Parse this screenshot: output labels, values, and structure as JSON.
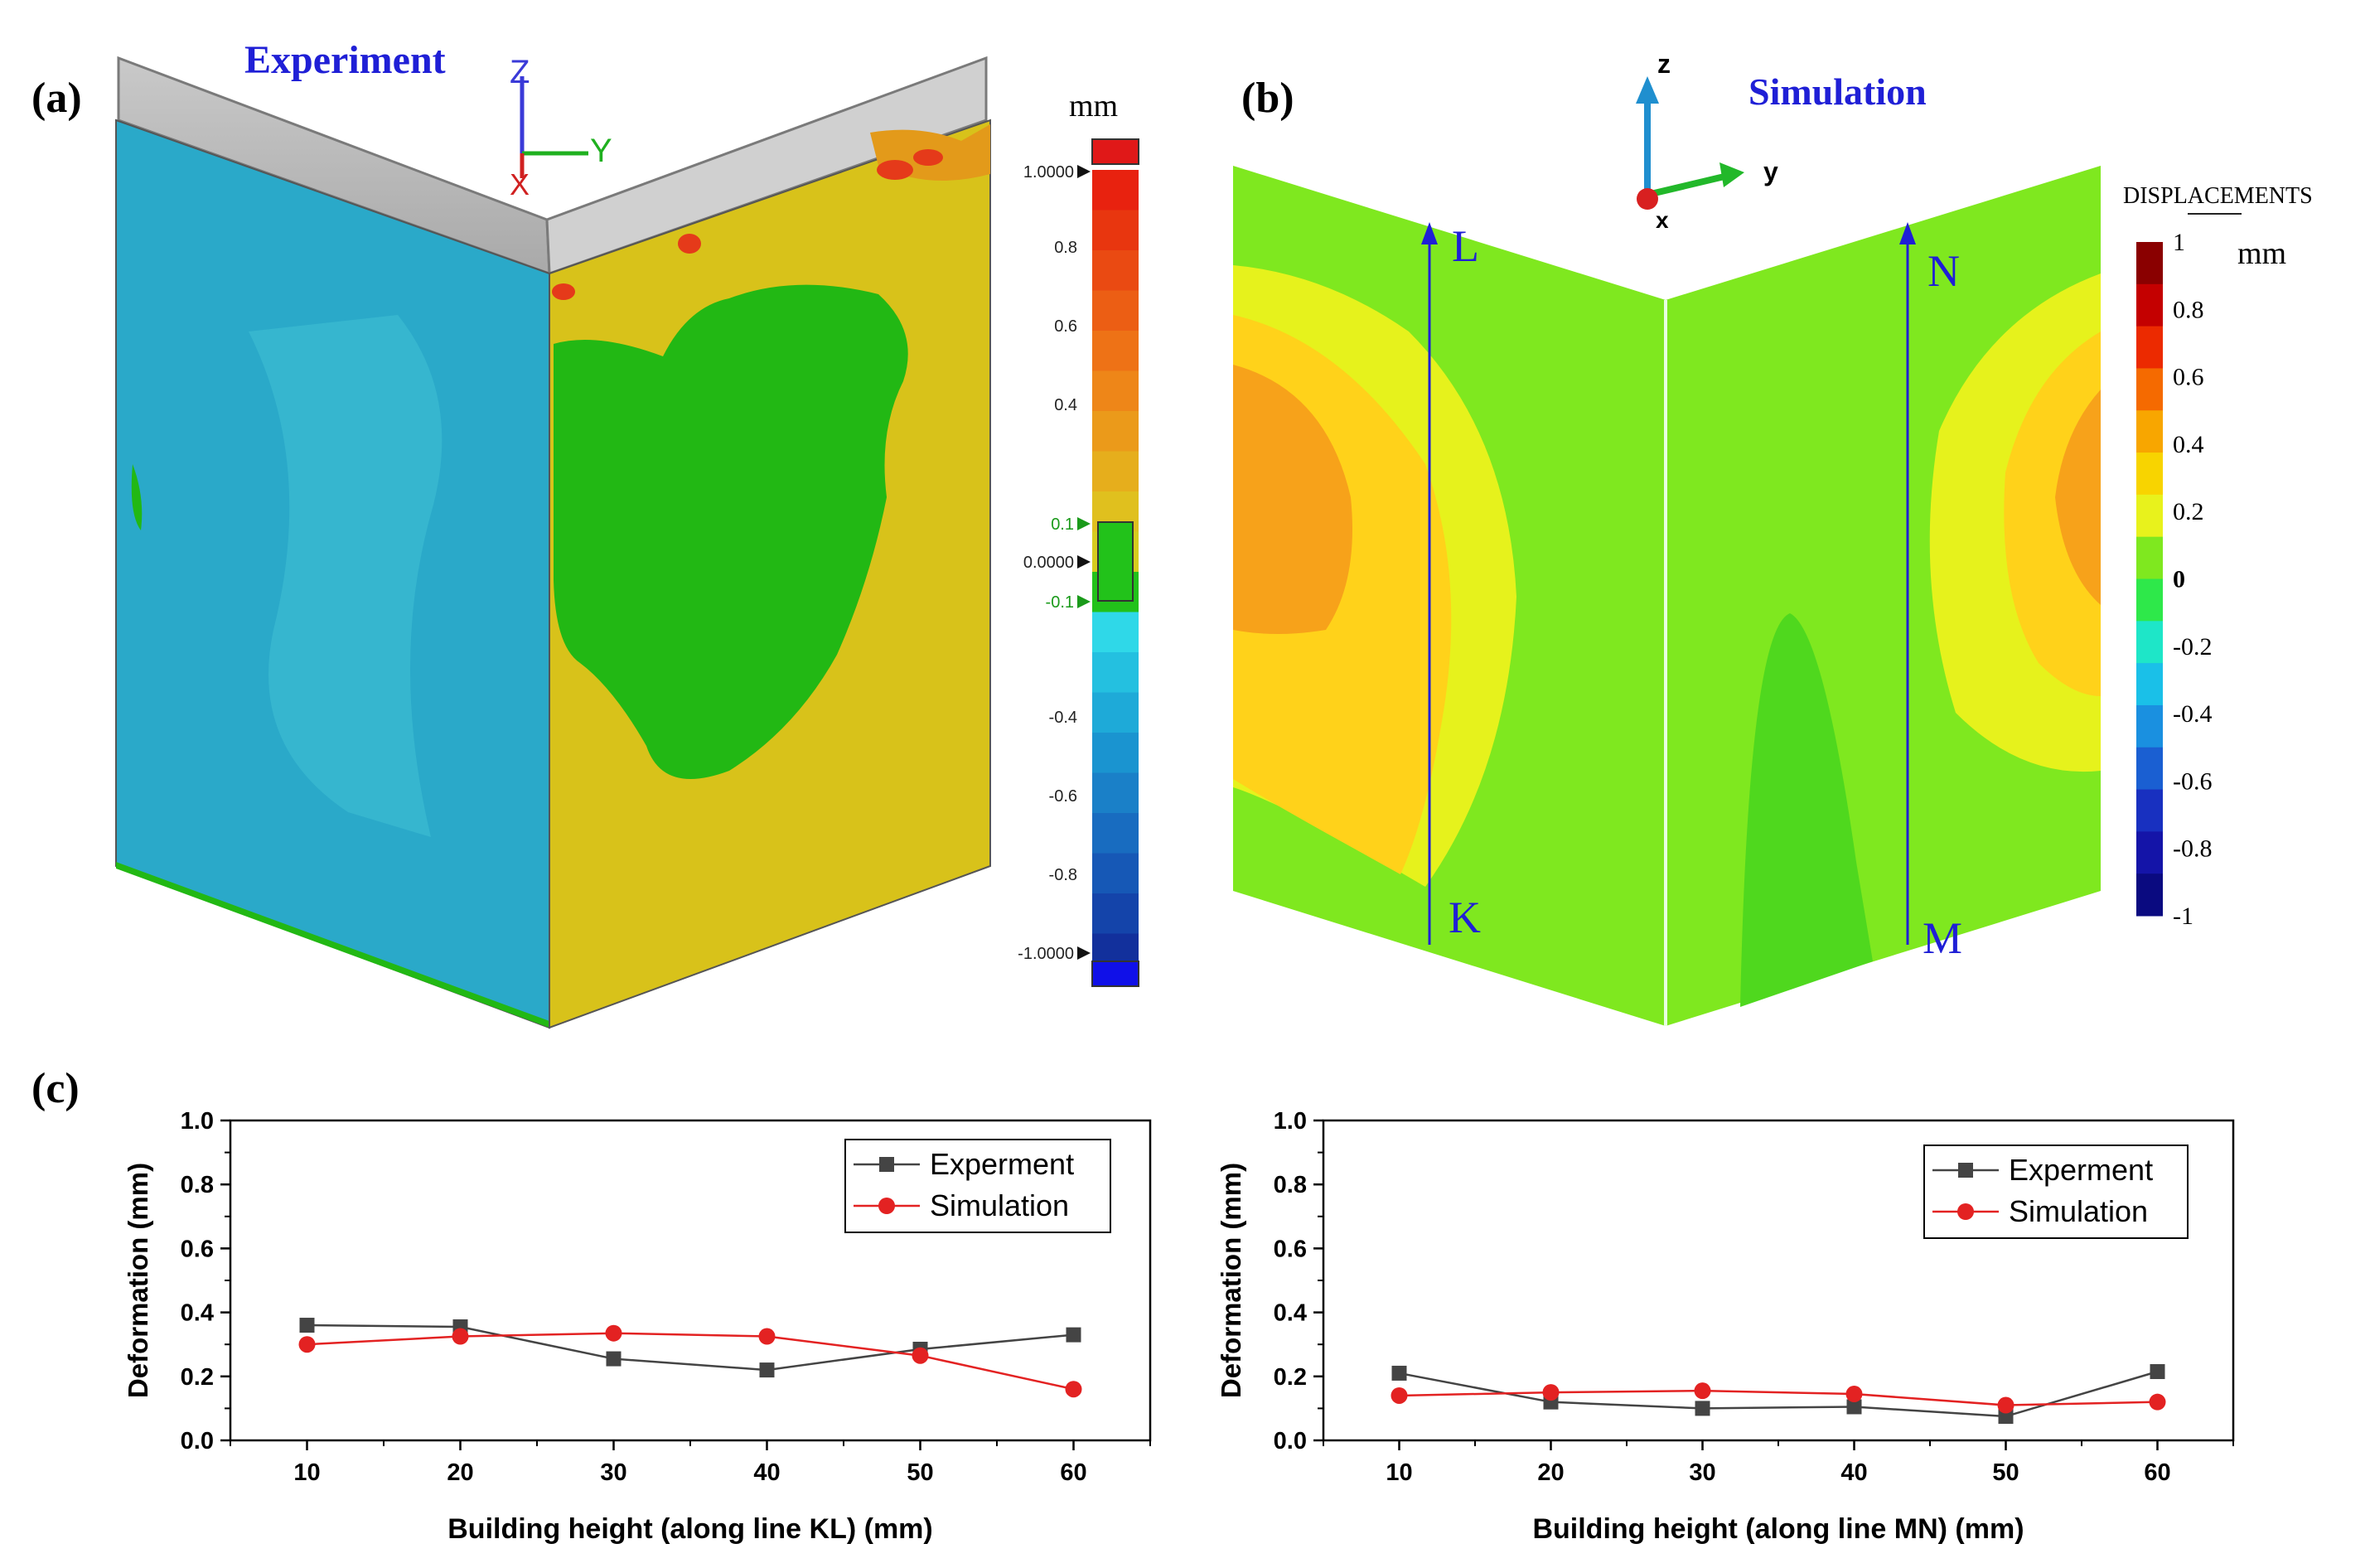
{
  "panels": {
    "a": {
      "label": "(a)",
      "title": "Experiment"
    },
    "b": {
      "label": "(b)",
      "title": "Simulation"
    },
    "c": {
      "label": "(c)"
    }
  },
  "axes_a": {
    "z": "Z",
    "y": "Y",
    "x": "X"
  },
  "axes_b": {
    "z": "z",
    "y": "y",
    "x": "x"
  },
  "colorbar_a": {
    "unit": "mm",
    "ticks": [
      "1.0000",
      "0.8",
      "0.6",
      "0.4",
      "0.1",
      "0.0000",
      "-0.1",
      "-0.4",
      "-0.6",
      "-0.8",
      "-1.0000"
    ]
  },
  "colorbar_b": {
    "title": "DISPLACEMENTS",
    "unit": "mm",
    "ticks": [
      "1",
      "0.8",
      "0.6",
      "0.4",
      "0.2",
      "0",
      "-0.2",
      "-0.4",
      "-0.6",
      "-0.8",
      "-1"
    ]
  },
  "lines_b": {
    "K": "K",
    "L": "L",
    "M": "M",
    "N": "N"
  },
  "colors": {
    "experiment": "#444444",
    "simulation": "#e32222",
    "title_blue": "#1f1fd6",
    "field_green": "#22b814",
    "field_yellow": "#d8c21a",
    "field_cyan": "#2aa9c9",
    "sim_green": "#7fe81f",
    "sim_yellow": "#e6f21c",
    "sim_gold": "#ffd21a",
    "sim_orange": "#f7a21a"
  },
  "chart_data": [
    {
      "type": "line",
      "x": [
        10,
        20,
        30,
        40,
        50,
        60
      ],
      "series": [
        {
          "name": "Experment",
          "values": [
            0.36,
            0.355,
            0.255,
            0.22,
            0.285,
            0.33
          ],
          "marker": "square"
        },
        {
          "name": "Simulation",
          "values": [
            0.3,
            0.325,
            0.335,
            0.325,
            0.265,
            0.16
          ],
          "marker": "circle"
        }
      ],
      "xlabel": "Building height (along line KL) (mm)",
      "ylabel": "Deformation (mm)",
      "xlim": [
        5,
        65
      ],
      "ylim": [
        0,
        1.0
      ],
      "xticks": [
        "10",
        "20",
        "30",
        "40",
        "50",
        "60"
      ],
      "yticks": [
        "0.0",
        "0.2",
        "0.4",
        "0.6",
        "0.8",
        "1.0"
      ],
      "legend": "top-right"
    },
    {
      "type": "line",
      "x": [
        10,
        20,
        30,
        40,
        50,
        60
      ],
      "series": [
        {
          "name": "Experment",
          "values": [
            0.21,
            0.12,
            0.1,
            0.105,
            0.075,
            0.215
          ],
          "marker": "square"
        },
        {
          "name": "Simulation",
          "values": [
            0.14,
            0.15,
            0.155,
            0.145,
            0.11,
            0.12
          ],
          "marker": "circle"
        }
      ],
      "xlabel": "Building height (along line MN) (mm)",
      "ylabel": "Deformation (mm)",
      "xlim": [
        5,
        65
      ],
      "ylim": [
        0,
        1.0
      ],
      "xticks": [
        "10",
        "20",
        "30",
        "40",
        "50",
        "60"
      ],
      "yticks": [
        "0.0",
        "0.2",
        "0.4",
        "0.6",
        "0.8",
        "1.0"
      ],
      "legend": "top-right"
    }
  ]
}
